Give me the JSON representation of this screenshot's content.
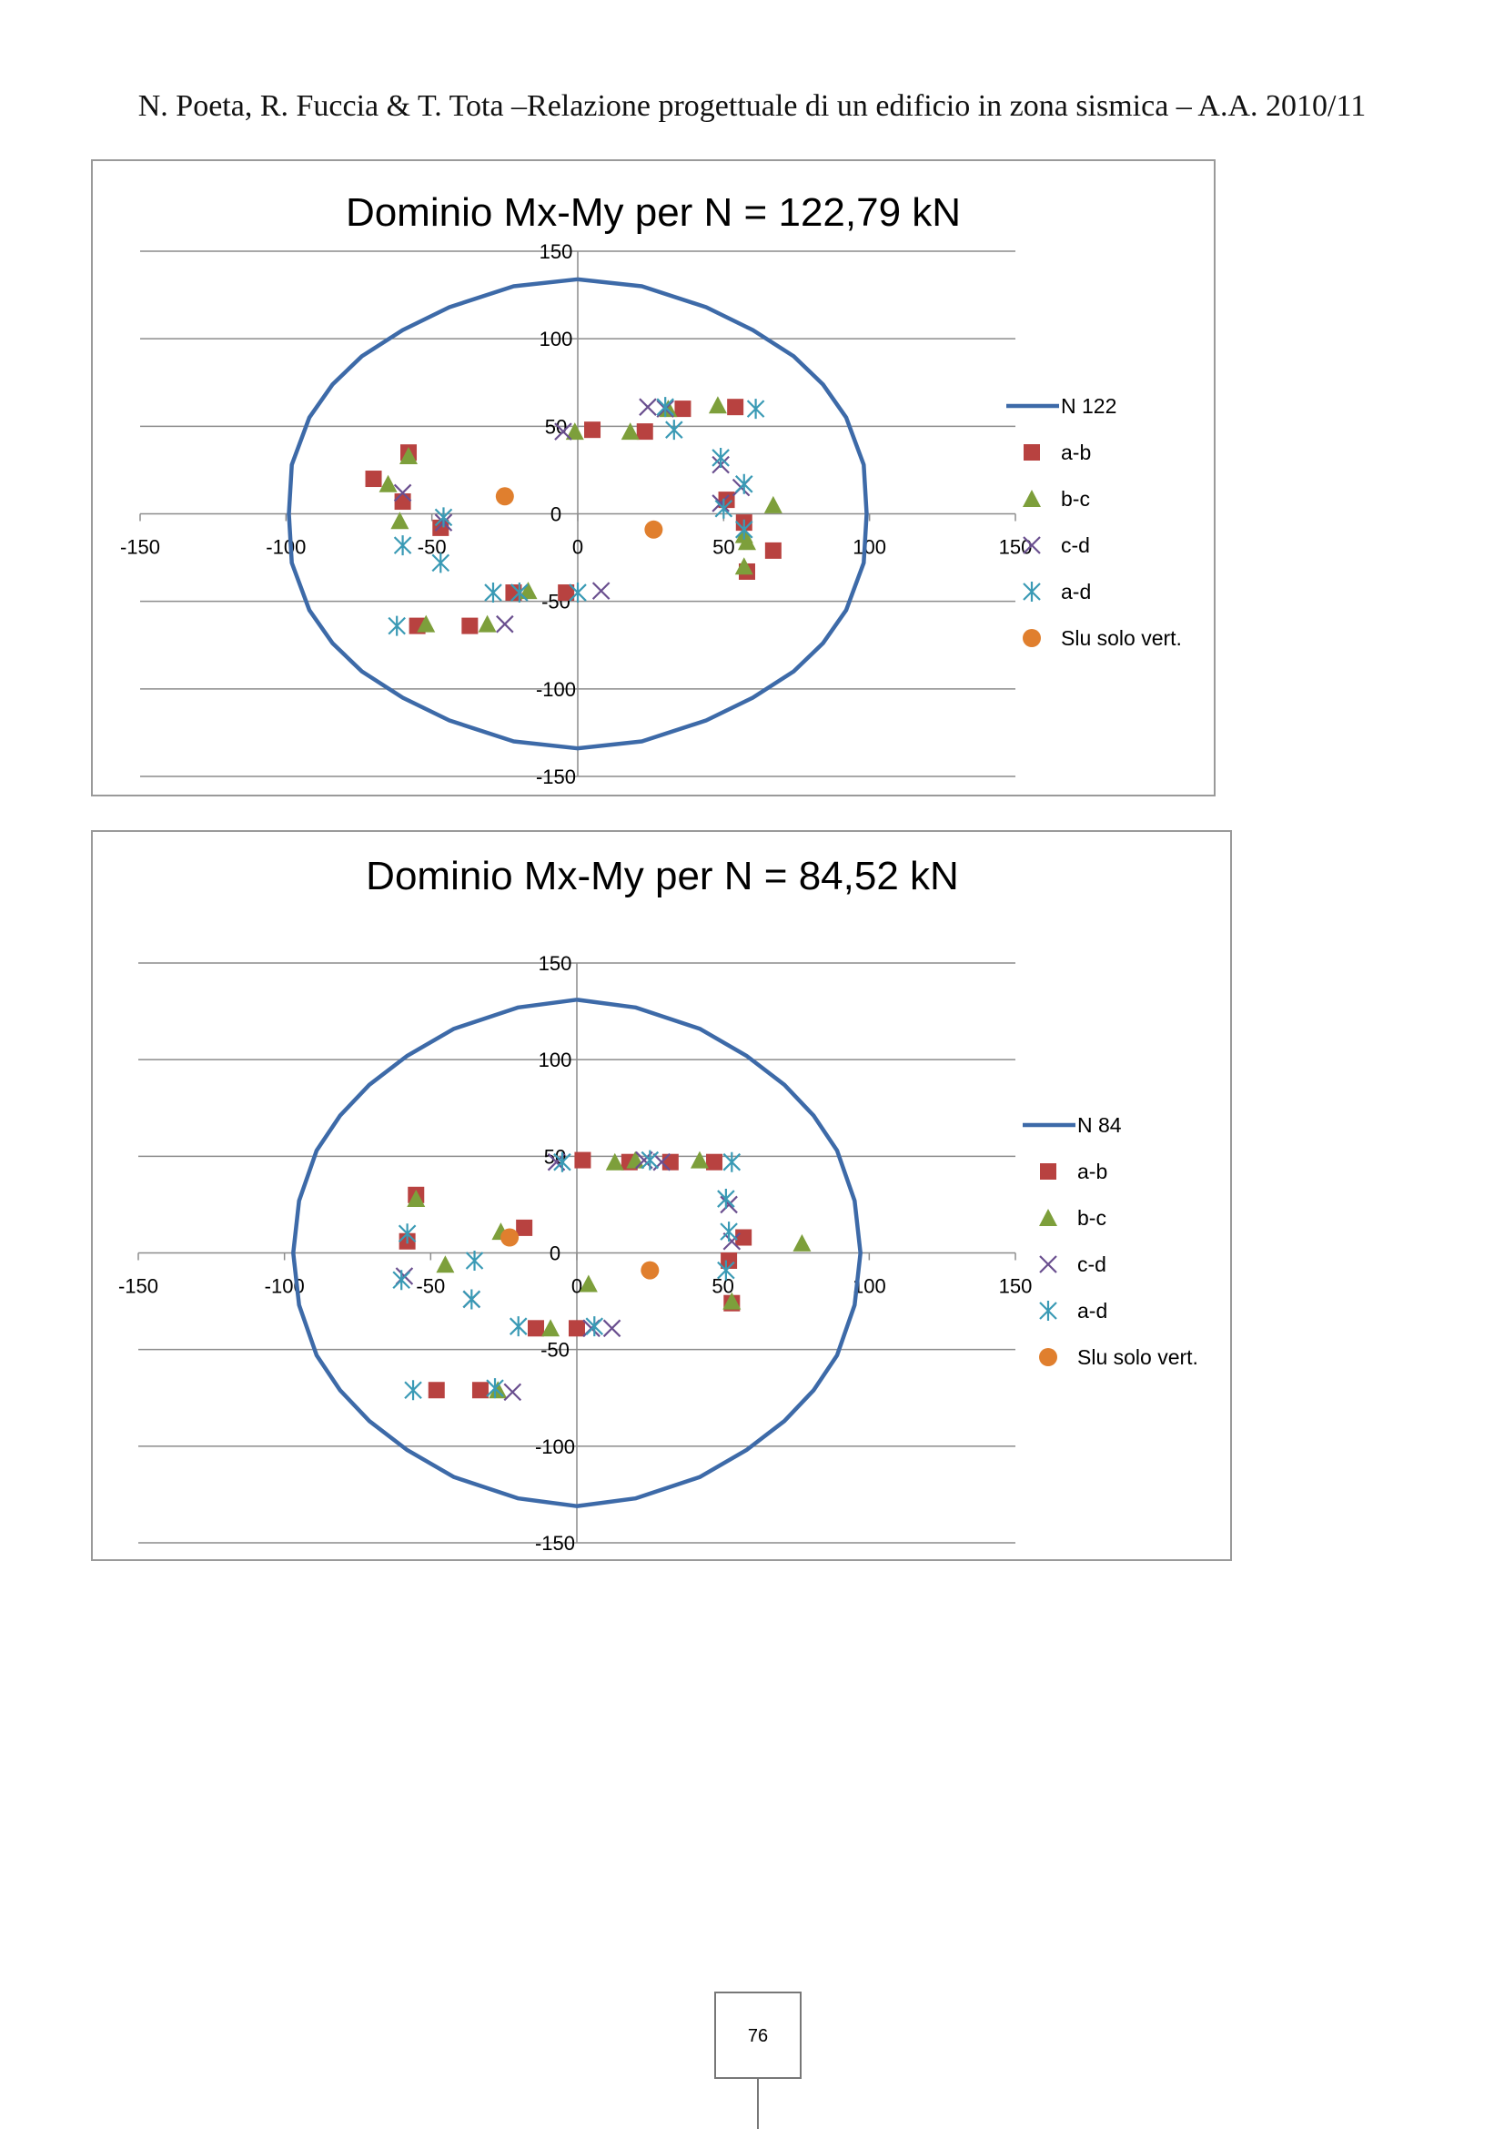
{
  "header": {
    "text": "N. Poeta, R. Fuccia & T. Tota –Relazione progettuale di un edificio in zona sismica – A.A. 2010/11"
  },
  "page_number": "76",
  "colors": {
    "domain_line": "#3d6aa8",
    "a-b": "#b84240",
    "b-c": "#7d9f3b",
    "c-d": "#6a4f8f",
    "a-d": "#3a9ab5",
    "slu": "#e07f2e",
    "grid": "#8c8c8c",
    "axis": "#8c8c8c"
  },
  "chart_data": [
    {
      "type": "scatter",
      "title": "Dominio Mx-My per N = 122,79 kN",
      "xlim": [
        -150,
        150
      ],
      "ylim": [
        -150,
        150
      ],
      "xticks": [
        "-150",
        "-100",
        "-50",
        "0",
        "50",
        "100",
        "150"
      ],
      "yticks": [
        "150",
        "100",
        "50",
        "0",
        "-50",
        "-100",
        "-150"
      ],
      "grid": "horizontal",
      "legend_position": "right",
      "domain": {
        "name": "N 122",
        "x": [
          0,
          22,
          44,
          60,
          74,
          84,
          92,
          98,
          99,
          98,
          92,
          84,
          74,
          60,
          44,
          22,
          0,
          -22,
          -44,
          -60,
          -74,
          -84,
          -92,
          -98,
          -99,
          -98,
          -92,
          -84,
          -74,
          -60,
          -44,
          -22,
          0
        ],
        "y": [
          134,
          130,
          118,
          105,
          90,
          74,
          55,
          28,
          0,
          -28,
          -55,
          -74,
          -90,
          -105,
          -118,
          -130,
          -134,
          -130,
          -118,
          -105,
          -90,
          -74,
          -55,
          -28,
          0,
          28,
          55,
          74,
          90,
          105,
          118,
          130,
          134
        ]
      },
      "series": [
        {
          "name": "a-b",
          "marker": "square",
          "x": [
            -70,
            -58,
            -60,
            -47,
            -55,
            -37,
            -22,
            -4,
            5,
            23,
            36,
            54,
            51,
            57,
            58,
            67
          ],
          "y": [
            20,
            35,
            7,
            -8,
            -64,
            -64,
            -45,
            -45,
            48,
            47,
            60,
            61,
            8,
            -5,
            -33,
            -21
          ]
        },
        {
          "name": "b-c",
          "marker": "triangle",
          "x": [
            -65,
            -58,
            -61,
            -52,
            -31,
            -17,
            -1,
            18,
            31,
            48,
            57,
            57,
            58,
            67
          ],
          "y": [
            17,
            33,
            -4,
            -63,
            -63,
            -44,
            47,
            47,
            60,
            62,
            -30,
            -12,
            -16,
            5
          ]
        },
        {
          "name": "c-d",
          "marker": "x",
          "x": [
            -60,
            -46,
            -25,
            -5,
            8,
            24,
            30,
            49,
            49,
            56
          ],
          "y": [
            12,
            -5,
            -63,
            47,
            -44,
            61,
            60,
            28,
            6,
            15
          ]
        },
        {
          "name": "a-d",
          "marker": "asterisk",
          "x": [
            -62,
            -60,
            -46,
            -47,
            -29,
            -20,
            0,
            30,
            33,
            49,
            50,
            57,
            57,
            61
          ],
          "y": [
            -64,
            -18,
            -2,
            -28,
            -45,
            -45,
            -45,
            61,
            48,
            32,
            3,
            17,
            -9,
            60
          ]
        },
        {
          "name": "Slu solo vert.",
          "marker": "circle",
          "x": [
            -25,
            26
          ],
          "y": [
            10,
            -9
          ]
        }
      ]
    },
    {
      "type": "scatter",
      "title": "Dominio Mx-My per N = 84,52 kN",
      "xlim": [
        -150,
        150
      ],
      "ylim": [
        -150,
        150
      ],
      "xticks": [
        "-150",
        "-100",
        "-50",
        "0",
        "50",
        "100",
        "150"
      ],
      "yticks": [
        "150",
        "100",
        "50",
        "0",
        "-50",
        "-100",
        "-150"
      ],
      "grid": "horizontal",
      "legend_position": "right",
      "domain": {
        "name": "N 84",
        "x": [
          0,
          20,
          42,
          58,
          71,
          81,
          89,
          95,
          97,
          95,
          89,
          81,
          71,
          58,
          42,
          20,
          0,
          -20,
          -42,
          -58,
          -71,
          -81,
          -89,
          -95,
          -97,
          -95,
          -89,
          -81,
          -71,
          -58,
          -42,
          -20,
          0
        ],
        "y": [
          131,
          127,
          116,
          102,
          87,
          71,
          53,
          27,
          0,
          -27,
          -53,
          -71,
          -87,
          -102,
          -116,
          -127,
          -131,
          -127,
          -116,
          -102,
          -87,
          -71,
          -53,
          -27,
          0,
          27,
          53,
          71,
          87,
          102,
          116,
          127,
          131
        ]
      },
      "series": [
        {
          "name": "a-b",
          "marker": "square",
          "x": [
            -55,
            -58,
            -48,
            -33,
            -18,
            -14,
            0,
            2,
            18,
            32,
            47,
            57,
            52,
            53
          ],
          "y": [
            30,
            6,
            -71,
            -71,
            13,
            -39,
            -39,
            48,
            47,
            47,
            47,
            8,
            -4,
            -26
          ]
        },
        {
          "name": "b-c",
          "marker": "triangle",
          "x": [
            -55,
            -45,
            -26,
            -27,
            4,
            13,
            20,
            42,
            53,
            77,
            -9
          ],
          "y": [
            28,
            -6,
            11,
            -71,
            -16,
            47,
            48,
            48,
            -25,
            5,
            -39
          ]
        },
        {
          "name": "c-d",
          "marker": "x",
          "x": [
            -59,
            -36,
            -22,
            -7,
            5,
            12,
            23,
            29,
            52,
            53
          ],
          "y": [
            -12,
            -24,
            -72,
            47,
            -39,
            -39,
            48,
            47,
            25,
            6
          ]
        },
        {
          "name": "a-d",
          "marker": "asterisk",
          "x": [
            -58,
            -60,
            -35,
            -36,
            -56,
            -28,
            -20,
            -5,
            6,
            25,
            51,
            53,
            52,
            51
          ],
          "y": [
            10,
            -14,
            -4,
            -24,
            -71,
            -70,
            -38,
            47,
            -38,
            48,
            28,
            47,
            11,
            -9
          ]
        },
        {
          "name": "Slu solo vert.",
          "marker": "circle",
          "x": [
            -23,
            25
          ],
          "y": [
            8,
            -9
          ]
        }
      ]
    }
  ]
}
